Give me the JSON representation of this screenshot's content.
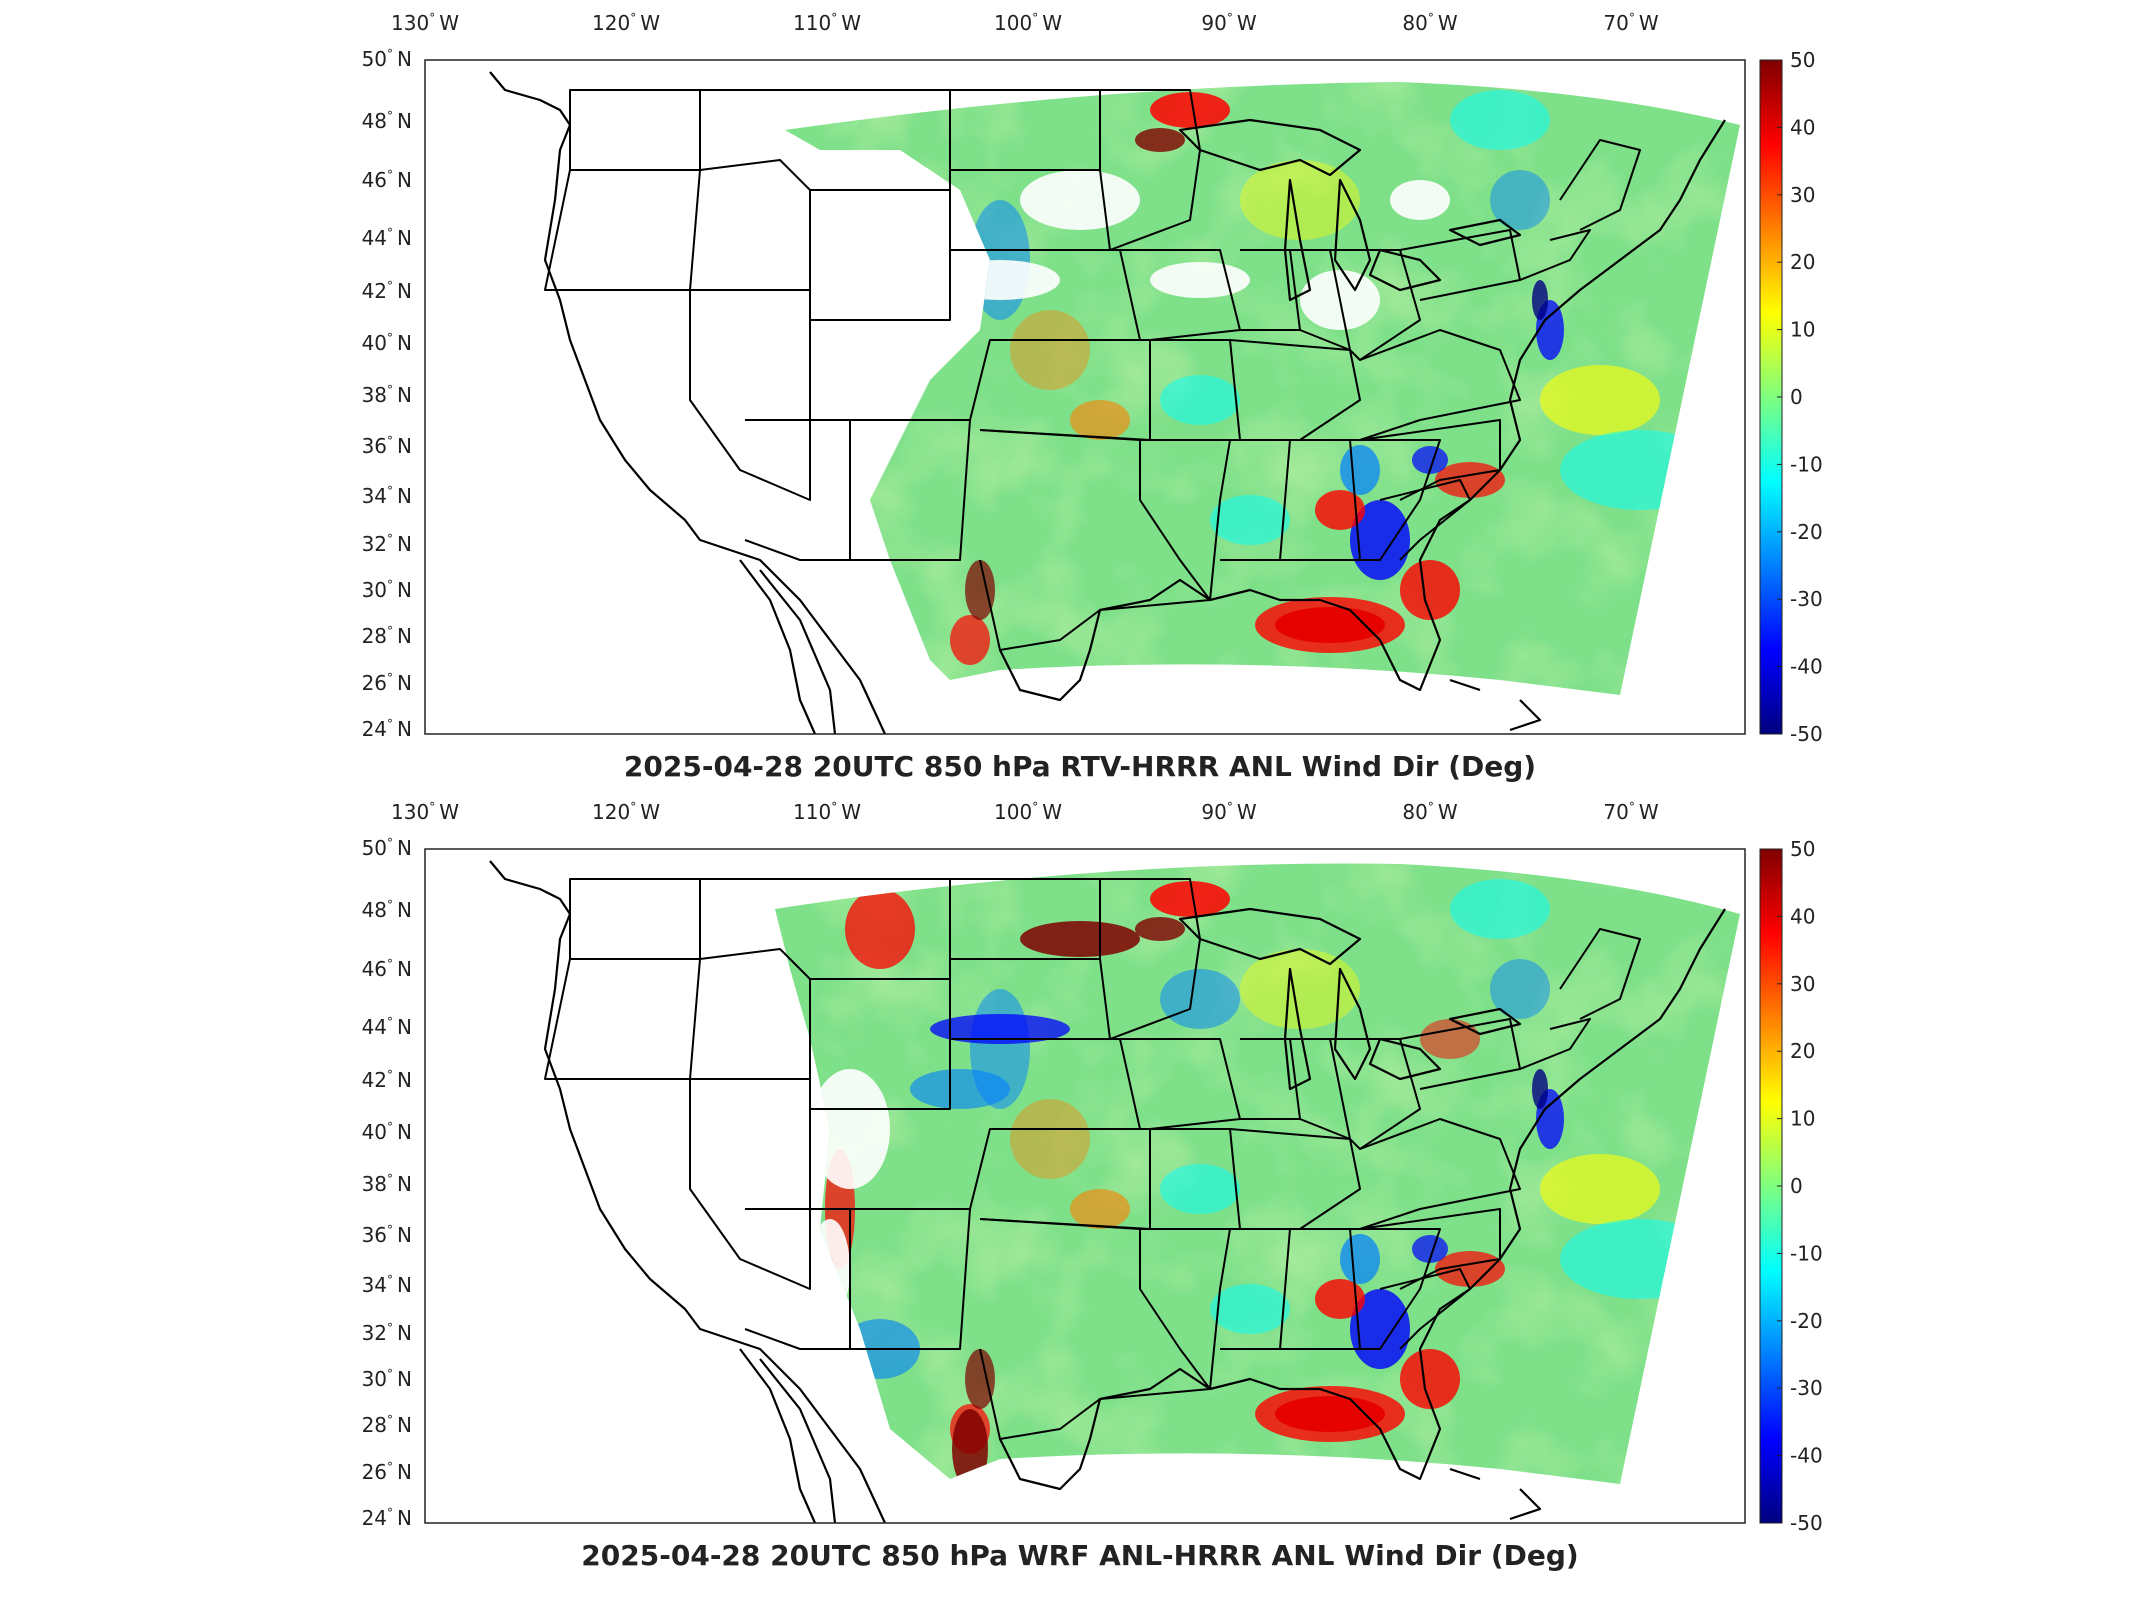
{
  "panels": [
    {
      "title": "2025-04-28 20UTC 850 hPa RTV-HRRR ANL Wind Dir (Deg)",
      "longitude_labels": [
        "130",
        "120",
        "110",
        "100",
        "90",
        "80",
        "70"
      ],
      "longitude_hemisphere": "W",
      "latitude_labels": [
        "50",
        "48",
        "46",
        "44",
        "42",
        "40",
        "38",
        "36",
        "34",
        "32",
        "30",
        "28",
        "26",
        "24"
      ],
      "latitude_hemisphere": "N",
      "colorbar_ticks": [
        "50",
        "40",
        "30",
        "20",
        "10",
        "0",
        "-10",
        "-20",
        "-30",
        "-40",
        "-50"
      ]
    },
    {
      "title": "2025-04-28 20UTC 850 hPa WRF ANL-HRRR ANL Wind Dir (Deg)",
      "longitude_labels": [
        "130",
        "120",
        "110",
        "100",
        "90",
        "80",
        "70"
      ],
      "longitude_hemisphere": "W",
      "latitude_labels": [
        "50",
        "48",
        "46",
        "44",
        "42",
        "40",
        "38",
        "36",
        "34",
        "32",
        "30",
        "28",
        "26",
        "24"
      ],
      "latitude_hemisphere": "N",
      "colorbar_ticks": [
        "50",
        "40",
        "30",
        "20",
        "10",
        "0",
        "-10",
        "-20",
        "-30",
        "-40",
        "-50"
      ]
    }
  ],
  "degree_symbol": "°",
  "colormap": [
    "#00007f",
    "#0000ff",
    "#007fff",
    "#00ffff",
    "#7fff7f",
    "#ffff00",
    "#ff7f00",
    "#ff0000",
    "#7f0000"
  ],
  "colorbar_range": [
    -50,
    50
  ],
  "land_color": "#ffffff",
  "boundary_color": "#000000"
}
